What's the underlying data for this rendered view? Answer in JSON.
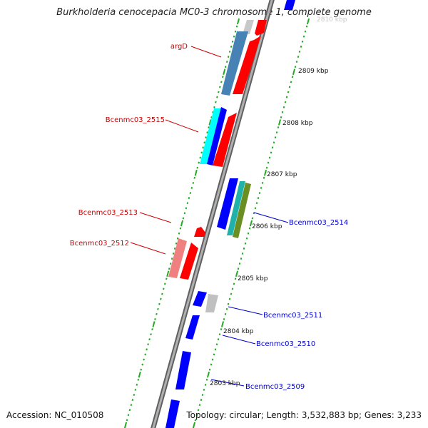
{
  "title": "Burkholderia cenocepacia MC0-3 chromosome 1, complete genome",
  "footer": {
    "accession": "Accession: NC_010508",
    "summary": "Topology: circular; Length: 3,532,883 bp; Genes: 3,233"
  },
  "colors": {
    "forward_gene": "#ff0000",
    "forward_gene_light": "#f08080",
    "reverse_gene": "#0000ff",
    "backbone": "#808080",
    "tick": "#22aa22",
    "label_forward": "#cc0000",
    "label_reverse": "#0000cc",
    "steelblue_gene": "#4682b4",
    "cyan_gene": "#00ffff",
    "teal_gene": "#20b2aa",
    "olive_gene": "#6b8e23",
    "gray_gene": "#c0c0c0"
  },
  "ruler": {
    "labels": [
      "2810 kbp",
      "2809 kbp",
      "2808 kbp",
      "2807 kbp",
      "2806 kbp",
      "2805 kbp",
      "2804 kbp",
      "2803 kbp"
    ]
  },
  "gene_labels": {
    "left": [
      "argD",
      "Bcenmc03_2515",
      "Bcenmc03_2513",
      "Bcenmc03_2512"
    ],
    "right": [
      "Bcenmc03_2514",
      "Bcenmc03_2511",
      "Bcenmc03_2510",
      "Bcenmc03_2509"
    ]
  }
}
